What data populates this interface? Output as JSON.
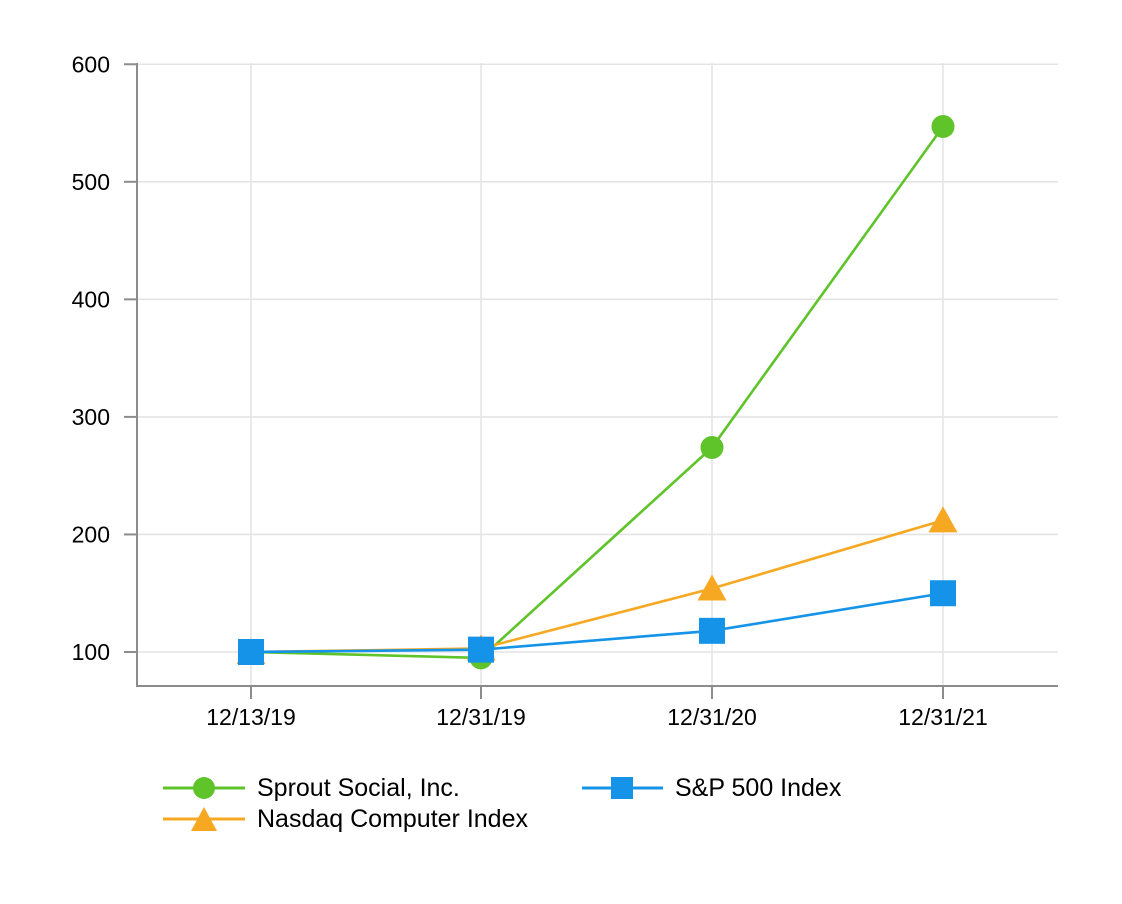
{
  "chart_data": {
    "type": "line",
    "title": "",
    "xlabel": "",
    "ylabel": "",
    "categories": [
      "12/13/19",
      "12/31/19",
      "12/31/20",
      "12/31/21"
    ],
    "yticks": [
      100,
      200,
      300,
      400,
      500,
      600
    ],
    "ylim": [
      71,
      600
    ],
    "grid": true,
    "legend_position": "bottom",
    "series": [
      {
        "name": "Sprout Social, Inc.",
        "marker": "circle",
        "color": "#5fc32a",
        "values": [
          100,
          95,
          274,
          547
        ]
      },
      {
        "name": "Nasdaq Computer Index",
        "marker": "triangle",
        "color": "#f7a823",
        "values": [
          100,
          103,
          154,
          212
        ]
      },
      {
        "name": "S&P 500 Index",
        "marker": "square",
        "color": "#1593e8",
        "values": [
          100,
          102,
          118,
          150
        ]
      }
    ],
    "colors": {
      "gridline": "#e4e4e4",
      "axis": "#8c8c8c",
      "tick_label": "#000000"
    }
  }
}
